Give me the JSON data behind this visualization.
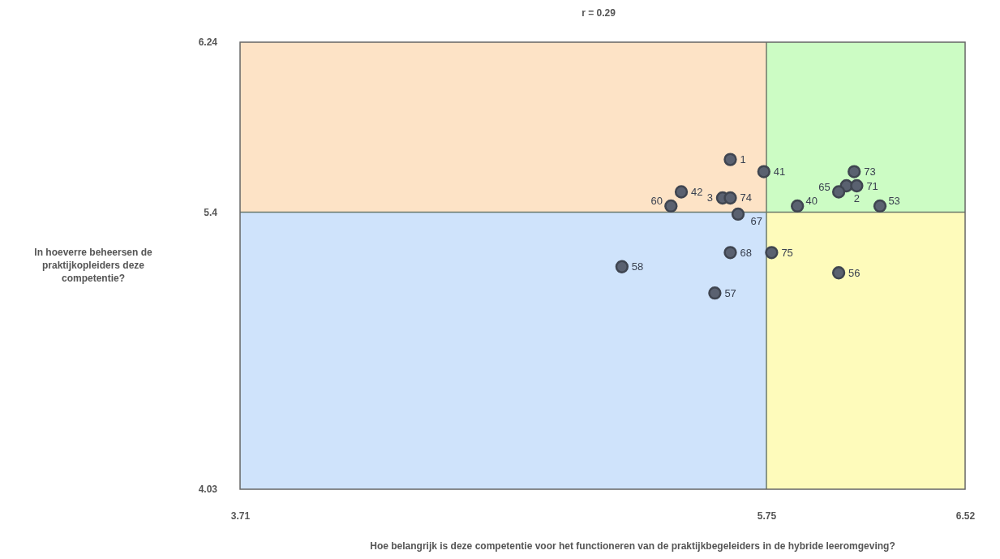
{
  "chart_data": {
    "type": "scatter",
    "title": "r = 0.29",
    "xlabel": "Hoe belangrijk is deze competentie voor het functioneren van de praktijkbegeleiders in de hybride leeromgeving?",
    "ylabel": "In hoeverre beheersen de praktijkopleiders deze competentie?",
    "xlim": [
      3.71,
      6.52
    ],
    "ylim": [
      4.03,
      6.24
    ],
    "xticks": [
      3.71,
      5.75,
      6.52
    ],
    "yticks": [
      4.03,
      5.4,
      6.24
    ],
    "grid": false,
    "marker": "circle",
    "series": [
      {
        "color": "#5a6170",
        "x": [
          5.61,
          5.74,
          5.42,
          5.38,
          5.58,
          5.61,
          5.64,
          5.87,
          6.09,
          6.06,
          6.1,
          6.03,
          6.19,
          5.61,
          5.77,
          6.03,
          5.19,
          5.55
        ],
        "values": [
          5.66,
          5.6,
          5.5,
          5.43,
          5.47,
          5.47,
          5.39,
          5.43,
          5.6,
          5.53,
          5.53,
          5.5,
          5.43,
          5.2,
          5.2,
          5.1,
          5.13,
          5.0
        ]
      }
    ],
    "annotations": [
      {
        "text": "1",
        "x": 5.61,
        "y": 5.66
      },
      {
        "text": "41",
        "x": 5.74,
        "y": 5.6
      },
      {
        "text": "42",
        "x": 5.42,
        "y": 5.5
      },
      {
        "text": "60",
        "x": 5.38,
        "y": 5.43
      },
      {
        "text": "3",
        "x": 5.58,
        "y": 5.47
      },
      {
        "text": "74",
        "x": 5.61,
        "y": 5.47
      },
      {
        "text": "67",
        "x": 5.64,
        "y": 5.39
      },
      {
        "text": "40",
        "x": 5.87,
        "y": 5.43
      },
      {
        "text": "73",
        "x": 6.09,
        "y": 5.6
      },
      {
        "text": "2",
        "x": 6.06,
        "y": 5.53
      },
      {
        "text": "71",
        "x": 6.1,
        "y": 5.53
      },
      {
        "text": "65",
        "x": 6.03,
        "y": 5.5
      },
      {
        "text": "53",
        "x": 6.19,
        "y": 5.43
      },
      {
        "text": "68",
        "x": 5.61,
        "y": 5.2
      },
      {
        "text": "75",
        "x": 5.77,
        "y": 5.2
      },
      {
        "text": "56",
        "x": 6.03,
        "y": 5.1
      },
      {
        "text": "58",
        "x": 5.19,
        "y": 5.13
      },
      {
        "text": "57",
        "x": 5.55,
        "y": 5.0
      }
    ],
    "ref_lines": [
      {
        "axis": "x",
        "value": 5.75,
        "color": "#6b7a6b"
      },
      {
        "axis": "y",
        "value": 5.4,
        "color": "#6b7a6b"
      }
    ],
    "bands": [
      {
        "axis": "y",
        "from": 5.4,
        "to": 6.24,
        "color": "#fde3c6"
      },
      {
        "axis": "y",
        "from": 4.03,
        "to": 5.4,
        "color": "#cfe3fb"
      },
      {
        "axis": "x",
        "from": 5.75,
        "to": 6.52,
        "color": "#ccfcc4"
      },
      {
        "axis": "x",
        "from": 5.75,
        "to": 6.52,
        "color": "#fefbbb"
      }
    ]
  }
}
